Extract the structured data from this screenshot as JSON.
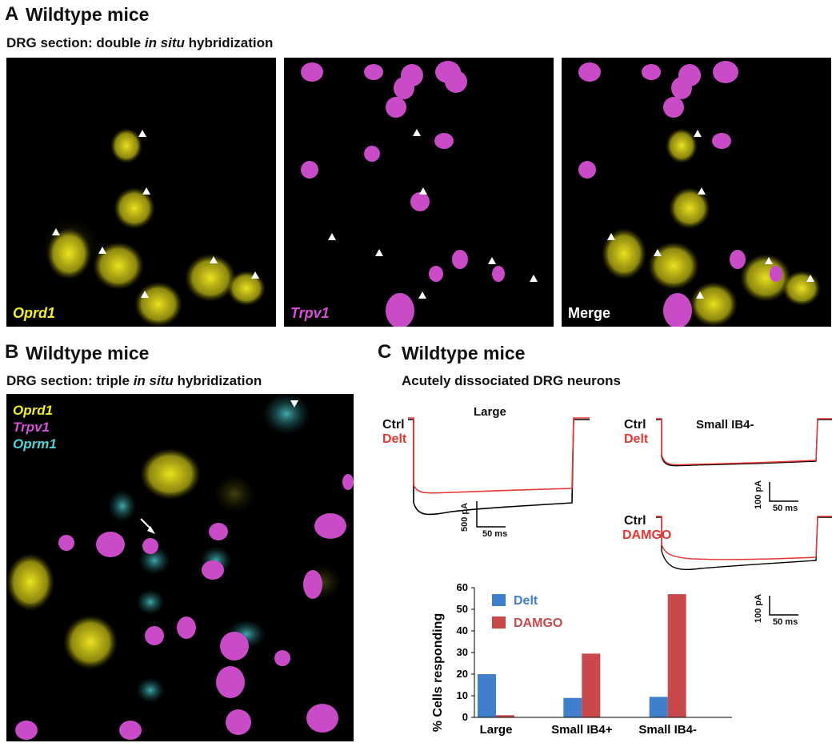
{
  "panelA": {
    "letter": "A",
    "title": "Wildtype mice",
    "subtitle_pre": "DRG section: double ",
    "subtitle_ital": "in situ",
    "subtitle_post": " hybridization",
    "images": [
      {
        "label": "Oprd1",
        "label_color": "#f2ef22",
        "italic": true
      },
      {
        "label": "Trpv1",
        "label_color": "#d94ed8",
        "italic": true
      },
      {
        "label": "Merge",
        "label_color": "#ffffff",
        "italic": false
      }
    ]
  },
  "panelB": {
    "letter": "B",
    "title": "Wildtype mice",
    "subtitle_pre": "DRG section: triple ",
    "subtitle_ital": "in situ",
    "subtitle_post": " hybridization",
    "legend": [
      {
        "label": "Oprd1",
        "color": "#f2ef22"
      },
      {
        "label": "Trpv1",
        "color": "#d94ed8"
      },
      {
        "label": "Oprm1",
        "color": "#4fd3d6"
      }
    ]
  },
  "panelC": {
    "letter": "C",
    "title": "Wildtype mice",
    "subtitle": "Acutely dissociated DRG neurons",
    "traces": {
      "large": {
        "title": "Large",
        "ctrl": "Ctrl",
        "drug": "Delt",
        "scale_y": "500 pA",
        "scale_x": "50 ms"
      },
      "small_delt": {
        "title": "Small IB4-",
        "ctrl": "Ctrl",
        "drug": "Delt",
        "scale_y": "100 pA",
        "scale_x": "50 ms"
      },
      "small_damgo": {
        "ctrl": "Ctrl",
        "drug": "DAMGO",
        "scale_y": "100 pA",
        "scale_x": "50 ms"
      }
    },
    "colors": {
      "ctrl": "#000000",
      "drug": "#e8352f"
    }
  },
  "chart_data": {
    "type": "bar",
    "categories": [
      "Large",
      "Small IB4+",
      "Small IB4-"
    ],
    "series": [
      {
        "name": "Delt",
        "color": "#3f7fcc",
        "values": [
          20,
          9,
          9.5
        ]
      },
      {
        "name": "DAMGO",
        "color": "#c9484a",
        "values": [
          1,
          29.5,
          57
        ]
      }
    ],
    "ylabel": "% Cells responding",
    "ylim": [
      0,
      60
    ],
    "yticks": [
      "0",
      "10",
      "20",
      "30",
      "40",
      "50",
      "60"
    ],
    "legend_position": "top-left"
  }
}
